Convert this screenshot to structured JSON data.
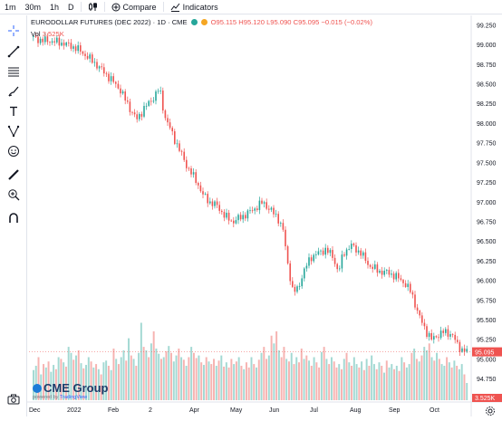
{
  "topbar": {
    "intervals": [
      "1m",
      "30m",
      "1h",
      "D"
    ],
    "compare_label": "Compare",
    "indicators_label": "Indicators"
  },
  "toolbar": {
    "icons": [
      "crosshair-icon",
      "trend-line-icon",
      "fib-retracement-icon",
      "brush-icon",
      "text-icon",
      "pattern-icon",
      "emoji-icon",
      "ruler-icon",
      "zoom-in-icon",
      "magnet-icon"
    ]
  },
  "legend": {
    "symbol": "EURODOLLAR FUTURES (DEC 2022) · 1D · CME",
    "ohlc": "O95.115 H95.120 L95.090 C95.095 −0.015 (−0.02%)",
    "status_dot_colors": [
      "#26a69a",
      "#f5a623"
    ]
  },
  "volume_legend": {
    "label": "Vol",
    "value": "3.525K"
  },
  "chart_data": {
    "type": "candlestick",
    "symbol": "EURODOLLAR FUTURES (DEC 2022)",
    "interval": "1D",
    "exchange": "CME",
    "y_axis": {
      "ticks": [
        "99.250",
        "99.000",
        "98.750",
        "98.500",
        "98.250",
        "98.000",
        "97.750",
        "97.500",
        "97.250",
        "97.000",
        "96.750",
        "96.500",
        "96.250",
        "96.000",
        "95.750",
        "95.500",
        "95.250",
        "95.000",
        "94.750",
        "94.500"
      ],
      "ylim": [
        94.48,
        99.33
      ]
    },
    "x_axis": {
      "ticks": [
        "Dec",
        "2022",
        "Feb",
        "2",
        "Apr",
        "May",
        "Jun",
        "Jul",
        "Aug",
        "Sep",
        "Oct"
      ]
    },
    "price_series": [
      [
        0,
        99.1
      ],
      [
        4,
        99.06
      ],
      [
        8,
        99.05
      ],
      [
        13,
        99.02
      ],
      [
        18,
        98.96
      ],
      [
        22,
        98.86
      ],
      [
        26,
        98.75
      ],
      [
        30,
        98.62
      ],
      [
        35,
        98.45
      ],
      [
        40,
        98.15
      ],
      [
        42,
        98.05
      ],
      [
        45,
        98.2
      ],
      [
        48,
        98.3
      ],
      [
        51,
        98.45
      ],
      [
        53,
        98.1
      ],
      [
        57,
        97.8
      ],
      [
        62,
        97.45
      ],
      [
        66,
        97.25
      ],
      [
        68,
        97.1
      ],
      [
        71,
        97.0
      ],
      [
        74,
        96.95
      ],
      [
        77,
        96.82
      ],
      [
        80,
        96.75
      ],
      [
        84,
        96.82
      ],
      [
        88,
        96.9
      ],
      [
        92,
        97.0
      ],
      [
        95,
        96.9
      ],
      [
        98,
        96.8
      ],
      [
        100,
        96.65
      ],
      [
        102,
        96.2
      ],
      [
        104,
        95.85
      ],
      [
        106,
        95.9
      ],
      [
        108,
        96.1
      ],
      [
        111,
        96.3
      ],
      [
        114,
        96.35
      ],
      [
        117,
        96.4
      ],
      [
        120,
        96.3
      ],
      [
        122,
        96.1
      ],
      [
        124,
        96.35
      ],
      [
        127,
        96.45
      ],
      [
        131,
        96.35
      ],
      [
        134,
        96.2
      ],
      [
        138,
        96.12
      ],
      [
        142,
        96.1
      ],
      [
        145,
        96.05
      ],
      [
        148,
        95.98
      ],
      [
        151,
        95.85
      ],
      [
        154,
        95.55
      ],
      [
        157,
        95.35
      ],
      [
        159,
        95.25
      ],
      [
        161,
        95.3
      ],
      [
        164,
        95.35
      ],
      [
        167,
        95.32
      ],
      [
        169,
        95.2
      ],
      [
        171,
        95.12
      ],
      [
        173,
        95.095
      ]
    ],
    "volume_max": "3.525K",
    "volume_series": [
      0.35,
      0.4,
      0.5,
      0.3,
      0.42,
      0.38,
      0.45,
      0.33,
      0.41,
      0.36,
      0.5,
      0.48,
      0.44,
      0.39,
      0.62,
      0.55,
      0.47,
      0.52,
      0.58,
      0.43,
      0.37,
      0.41,
      0.5,
      0.45,
      0.38,
      0.42,
      0.36,
      0.3,
      0.44,
      0.46,
      0.4,
      0.35,
      0.6,
      0.48,
      0.42,
      0.5,
      0.58,
      0.46,
      0.72,
      0.52,
      0.48,
      0.4,
      0.55,
      0.9,
      0.62,
      0.58,
      0.5,
      0.66,
      0.8,
      0.6,
      0.54,
      0.48,
      0.5,
      0.57,
      0.63,
      0.55,
      0.45,
      0.52,
      0.6,
      0.5,
      0.47,
      0.4,
      0.5,
      0.62,
      0.55,
      0.49,
      0.52,
      0.44,
      0.41,
      0.5,
      0.45,
      0.42,
      0.48,
      0.4,
      0.46,
      0.52,
      0.39,
      0.44,
      0.38,
      0.48,
      0.42,
      0.45,
      0.5,
      0.4,
      0.36,
      0.44,
      0.38,
      0.5,
      0.42,
      0.38,
      0.47,
      0.55,
      0.62,
      0.48,
      0.52,
      0.75,
      0.66,
      0.8,
      0.58,
      0.5,
      0.62,
      0.48,
      0.45,
      0.55,
      0.42,
      0.5,
      0.44,
      0.6,
      0.48,
      0.52,
      0.46,
      0.4,
      0.5,
      0.44,
      0.38,
      0.56,
      0.62,
      0.48,
      0.42,
      0.5,
      0.45,
      0.38,
      0.42,
      0.36,
      0.48,
      0.55,
      0.44,
      0.4,
      0.5,
      0.42,
      0.38,
      0.45,
      0.35,
      0.48,
      0.4,
      0.52,
      0.42,
      0.36,
      0.44,
      0.4,
      0.32,
      0.46,
      0.38,
      0.42,
      0.36,
      0.4,
      0.34,
      0.5,
      0.44,
      0.38,
      0.42,
      0.55,
      0.6,
      0.48,
      0.45,
      0.52,
      0.62,
      0.58,
      0.66,
      0.5,
      0.46,
      0.55,
      0.48,
      0.42,
      0.4,
      0.5,
      0.44,
      0.38,
      0.46,
      0.4,
      0.36,
      0.42,
      0.3,
      0.2
    ],
    "last_price_label": "95.095",
    "last_price": 95.095,
    "volume_label": "3.525K",
    "colors": {
      "up": "#26a69a",
      "down": "#ef5350",
      "up_volume": "#a3d9d3",
      "down_volume": "#f6b3b1"
    }
  },
  "branding": {
    "logo_text": "CME Group",
    "powered_by": "powered by",
    "provider": "TradingView"
  }
}
